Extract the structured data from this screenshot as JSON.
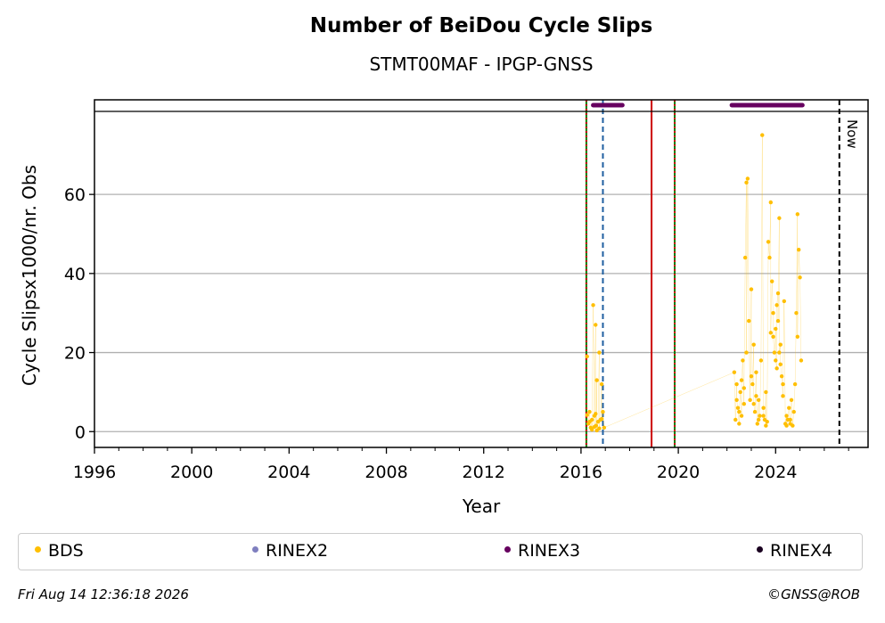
{
  "chart_data": {
    "type": "scatter",
    "title": "Number of BeiDou Cycle Slips",
    "subtitle": "STMT00MAF - IPGP-GNSS",
    "xlabel": "Year",
    "ylabel": "Cycle Slipsx1000/nr. Obs",
    "xlim": [
      1996,
      2027.8
    ],
    "ylim": [
      -4,
      81
    ],
    "x_ticks": [
      "1996",
      "2000",
      "2004",
      "2008",
      "2012",
      "2016",
      "2020",
      "2024"
    ],
    "y_ticks": [
      "0",
      "20",
      "40",
      "60"
    ],
    "grid": "horizontal",
    "series": [
      {
        "name": "BDS",
        "color": "#ffbf00",
        "points": [
          [
            2016.25,
            19
          ],
          [
            2016.3,
            2
          ],
          [
            2016.35,
            5
          ],
          [
            2016.4,
            1
          ],
          [
            2016.45,
            3
          ],
          [
            2016.5,
            32
          ],
          [
            2016.55,
            4
          ],
          [
            2016.6,
            27
          ],
          [
            2016.62,
            1.5
          ],
          [
            2016.65,
            13
          ],
          [
            2016.7,
            2.5
          ],
          [
            2016.75,
            20
          ],
          [
            2016.8,
            3
          ],
          [
            2016.85,
            12
          ],
          [
            2016.9,
            5
          ],
          [
            2016.95,
            1
          ],
          [
            2016.45,
            0.5
          ],
          [
            2016.6,
            4.5
          ],
          [
            2016.75,
            0.8
          ],
          [
            2016.35,
            2.5
          ],
          [
            2016.55,
            1.2
          ],
          [
            2016.85,
            3.2
          ],
          [
            2016.25,
            4.2
          ],
          [
            2016.65,
            0.3
          ],
          [
            2022.3,
            15
          ],
          [
            2022.35,
            3
          ],
          [
            2022.4,
            12
          ],
          [
            2022.45,
            6
          ],
          [
            2022.5,
            2
          ],
          [
            2022.55,
            10
          ],
          [
            2022.6,
            4
          ],
          [
            2022.65,
            18
          ],
          [
            2022.7,
            7
          ],
          [
            2022.75,
            44
          ],
          [
            2022.8,
            63
          ],
          [
            2022.85,
            64
          ],
          [
            2022.9,
            28
          ],
          [
            2022.95,
            8
          ],
          [
            2023.0,
            36
          ],
          [
            2023.05,
            12
          ],
          [
            2023.1,
            22
          ],
          [
            2023.15,
            5
          ],
          [
            2023.2,
            15
          ],
          [
            2023.25,
            2
          ],
          [
            2023.3,
            8
          ],
          [
            2023.35,
            4
          ],
          [
            2023.4,
            18
          ],
          [
            2023.45,
            75
          ],
          [
            2023.5,
            6
          ],
          [
            2023.55,
            3
          ],
          [
            2023.6,
            10
          ],
          [
            2023.65,
            2.5
          ],
          [
            2023.7,
            48
          ],
          [
            2023.75,
            44
          ],
          [
            2023.8,
            58
          ],
          [
            2023.85,
            38
          ],
          [
            2023.9,
            30
          ],
          [
            2023.95,
            20
          ],
          [
            2024.0,
            26
          ],
          [
            2024.05,
            16
          ],
          [
            2024.1,
            35
          ],
          [
            2024.15,
            54
          ],
          [
            2024.2,
            22
          ],
          [
            2024.25,
            14
          ],
          [
            2024.3,
            9
          ],
          [
            2024.35,
            33
          ],
          [
            2024.4,
            2
          ],
          [
            2024.45,
            4
          ],
          [
            2024.5,
            3
          ],
          [
            2024.55,
            6
          ],
          [
            2024.6,
            2
          ],
          [
            2024.65,
            8
          ],
          [
            2024.7,
            1.5
          ],
          [
            2024.75,
            5
          ],
          [
            2024.8,
            12
          ],
          [
            2024.85,
            30
          ],
          [
            2024.9,
            55
          ],
          [
            2024.95,
            46
          ],
          [
            2025.0,
            39
          ],
          [
            2025.05,
            18
          ],
          [
            2022.4,
            8
          ],
          [
            2022.6,
            13
          ],
          [
            2022.8,
            20
          ],
          [
            2023.0,
            14
          ],
          [
            2023.2,
            9
          ],
          [
            2023.5,
            4
          ],
          [
            2023.9,
            24
          ],
          [
            2024.0,
            18
          ],
          [
            2024.1,
            28
          ],
          [
            2024.2,
            17
          ],
          [
            2024.3,
            12
          ],
          [
            2024.6,
            3
          ],
          [
            2024.9,
            24
          ],
          [
            2022.5,
            5
          ],
          [
            2022.7,
            11
          ],
          [
            2023.1,
            7
          ],
          [
            2023.3,
            3
          ],
          [
            2023.6,
            1.5
          ],
          [
            2023.8,
            25
          ],
          [
            2024.05,
            32
          ],
          [
            2024.15,
            20
          ],
          [
            2024.45,
            1.5
          ]
        ]
      },
      {
        "name": "RINEX2",
        "color": "#7f7fbf"
      },
      {
        "name": "RINEX3",
        "color": "#66005f",
        "bars": [
          [
            2016.5,
            2017.7
          ],
          [
            2022.2,
            2025.1
          ]
        ]
      },
      {
        "name": "RINEX4",
        "color": "#1a0020"
      }
    ],
    "vlines": [
      {
        "x": 2016.22,
        "color": "#008000",
        "style": "solid"
      },
      {
        "x": 2016.22,
        "color": "#cc0000",
        "style": "dotted"
      },
      {
        "x": 2016.9,
        "color": "#1f5fa0",
        "style": "dashed"
      },
      {
        "x": 2018.9,
        "color": "#cc0000",
        "style": "solid"
      },
      {
        "x": 2019.85,
        "color": "#008000",
        "style": "solid"
      },
      {
        "x": 2019.85,
        "color": "#cc0000",
        "style": "dotted"
      },
      {
        "x": 2026.62,
        "color": "#000000",
        "style": "dashed"
      }
    ],
    "annotation": "Now"
  },
  "footer": {
    "timestamp": "Fri Aug 14 12:36:18 2026",
    "copyright": "©GNSS@ROB"
  }
}
